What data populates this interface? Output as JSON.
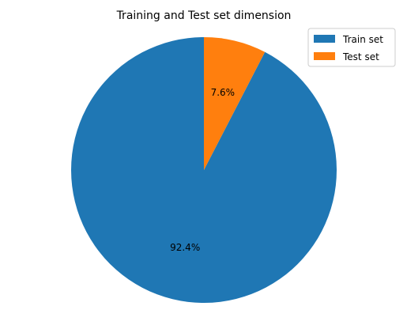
{
  "chart_data": {
    "type": "pie",
    "title": "Training and Test set dimension",
    "categories": [
      "Train set",
      "Test set"
    ],
    "values": [
      92.4,
      7.6
    ],
    "labels": [
      "92.4%",
      "7.6%"
    ],
    "colors": [
      "#1f77b4",
      "#ff7f0e"
    ],
    "start_angle_deg": 90,
    "direction": "counterclockwise",
    "legend": {
      "placement": "top-right",
      "entries": [
        "Train set",
        "Test set"
      ]
    }
  }
}
